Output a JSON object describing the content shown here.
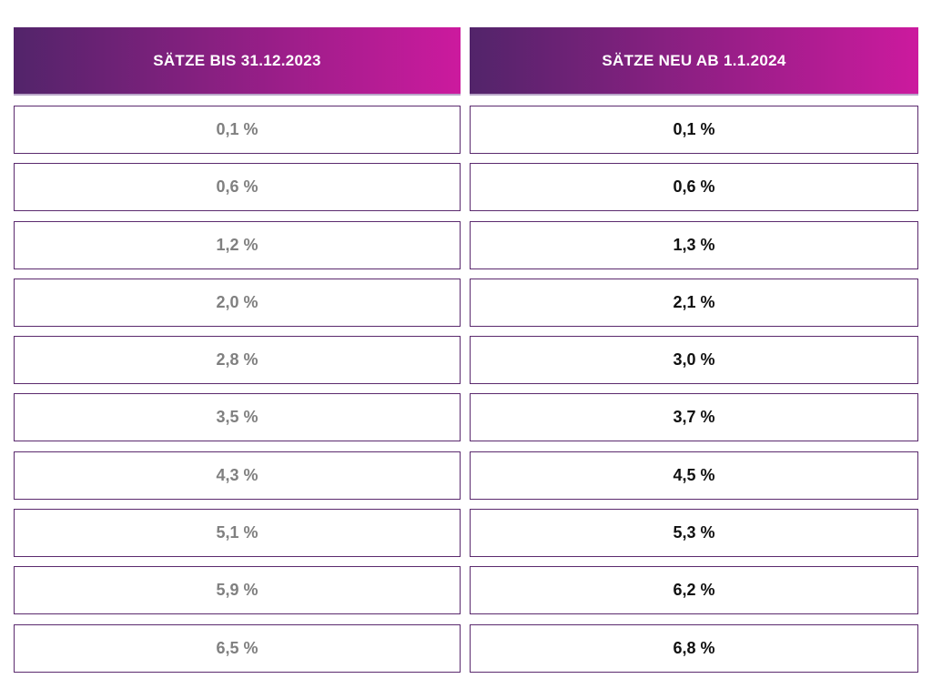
{
  "colors": {
    "header_gradient_start": "#52246a",
    "header_gradient_end": "#cc1a9e",
    "cell_border": "#5b2a6e",
    "old_rate_text": "#808080",
    "new_rate_text": "#111111"
  },
  "table": {
    "headers": [
      "SÄTZE BIS 31.12.2023",
      "SÄTZE NEU AB 1.1.2024"
    ],
    "rows": [
      {
        "old": "0,1 %",
        "new": "0,1 %"
      },
      {
        "old": "0,6 %",
        "new": "0,6 %"
      },
      {
        "old": "1,2 %",
        "new": "1,3 %"
      },
      {
        "old": "2,0 %",
        "new": "2,1 %"
      },
      {
        "old": "2,8 %",
        "new": "3,0 %"
      },
      {
        "old": "3,5 %",
        "new": "3,7 %"
      },
      {
        "old": "4,3 %",
        "new": "4,5 %"
      },
      {
        "old": "5,1 %",
        "new": "5,3 %"
      },
      {
        "old": "5,9 %",
        "new": "6,2 %"
      },
      {
        "old": "6,5 %",
        "new": "6,8 %"
      }
    ]
  },
  "chart_data": {
    "type": "table",
    "columns": [
      "SÄTZE BIS 31.12.2023",
      "SÄTZE NEU AB 1.1.2024"
    ],
    "unit": "%",
    "series": [
      {
        "name": "SÄTZE BIS 31.12.2023",
        "values": [
          0.1,
          0.6,
          1.2,
          2.0,
          2.8,
          3.5,
          4.3,
          5.1,
          5.9,
          6.5
        ]
      },
      {
        "name": "SÄTZE NEU AB 1.1.2024",
        "values": [
          0.1,
          0.6,
          1.3,
          2.1,
          3.0,
          3.7,
          4.5,
          5.3,
          6.2,
          6.8
        ]
      }
    ]
  }
}
